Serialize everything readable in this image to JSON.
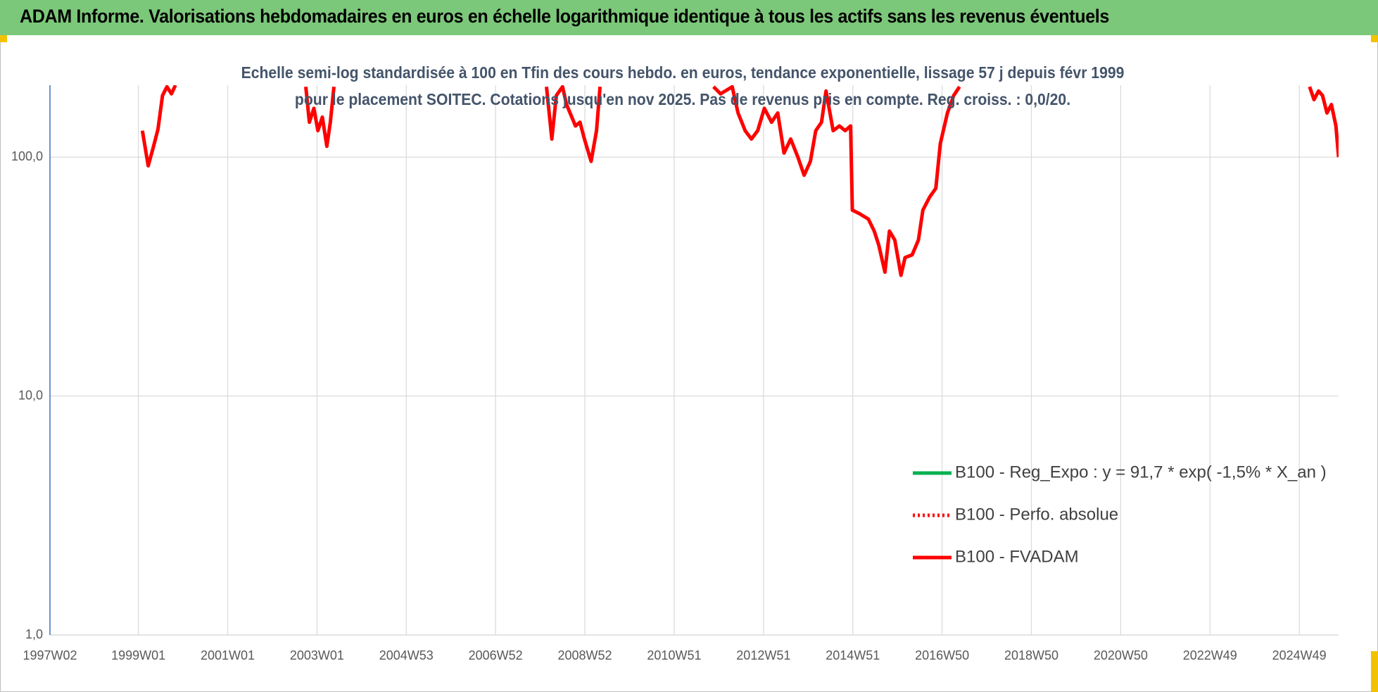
{
  "chart_data": {
    "type": "line",
    "title": "ADAM Informe. Valorisations hebdomadaires en euros en échelle logarithmique identique à tous les actifs sans les revenus éventuels",
    "subtitle": "Echelle semi-log standardisée à 100 en Tfin des cours hebdo. en euros, tendance exponentielle, lissage 57 j depuis févr 1999 pour le placement SOITEC. Cotations jusqu'en nov 2025. Pas de revenus pris en compte. Reg. croiss. : 0,0/20.",
    "log_scale": true,
    "grid": true,
    "legend_position": "right",
    "xlim": [
      1997.02,
      2025.88
    ],
    "xticks": [
      {
        "value": 1997.02,
        "label": "1997W02"
      },
      {
        "value": 1999.0,
        "label": "1999W01"
      },
      {
        "value": 2001.0,
        "label": "2001W01"
      },
      {
        "value": 2003.0,
        "label": "2003W01"
      },
      {
        "value": 2005.0,
        "label": "2004W53"
      },
      {
        "value": 2007.0,
        "label": "2006W52"
      },
      {
        "value": 2009.0,
        "label": "2008W52"
      },
      {
        "value": 2011.0,
        "label": "2010W51"
      },
      {
        "value": 2013.0,
        "label": "2012W51"
      },
      {
        "value": 2015.0,
        "label": "2014W51"
      },
      {
        "value": 2017.0,
        "label": "2016W50"
      },
      {
        "value": 2019.0,
        "label": "2018W50"
      },
      {
        "value": 2021.0,
        "label": "2020W50"
      },
      {
        "value": 2023.0,
        "label": "2022W49"
      },
      {
        "value": 2025.0,
        "label": "2024W49"
      }
    ],
    "ylim": [
      1,
      200
    ],
    "yticks": [
      {
        "value": 1,
        "label": "1,0"
      },
      {
        "value": 10,
        "label": "10,0"
      },
      {
        "value": 100,
        "label": "100,0"
      }
    ],
    "series": [
      {
        "name": "B100 - Reg_Expo : y = 91,7 * exp( -1,5% *  X_an )",
        "color": "#00b050",
        "style": "solid",
        "x": [],
        "values": []
      },
      {
        "name": "B100 - Perfo. absolue",
        "color": "#ff0000",
        "style": "dotted",
        "x": [],
        "values": []
      },
      {
        "name": "B100 - FVADAM",
        "color": "#ff0000",
        "style": "solid",
        "x": [
          1999.09,
          1999.22,
          1999.34,
          1999.44,
          1999.54,
          1999.64,
          1999.74,
          1999.83,
          null,
          2002.75,
          2002.83,
          2002.93,
          2003.02,
          2003.12,
          2003.22,
          2003.3,
          2003.38,
          null,
          2008.14,
          2008.26,
          2008.36,
          2008.5,
          2008.59,
          2008.79,
          2008.89,
          2008.99,
          2009.14,
          2009.26,
          2009.34,
          null,
          2011.88,
          2012.04,
          2012.3,
          2012.43,
          2012.59,
          2012.73,
          2012.87,
          2013.02,
          2013.18,
          2013.32,
          2013.46,
          2013.61,
          2013.77,
          2013.91,
          2014.05,
          2014.17,
          2014.3,
          2014.4,
          2014.56,
          2014.7,
          2014.83,
          2014.95,
          2014.99,
          2015.15,
          2015.35,
          2015.48,
          2015.58,
          2015.72,
          2015.82,
          2015.94,
          2016.08,
          2016.17,
          2016.33,
          2016.47,
          2016.57,
          2016.72,
          2016.86,
          2016.96,
          2017.12,
          2017.26,
          2017.39,
          null,
          2025.23,
          2025.33,
          2025.43,
          2025.52,
          2025.62,
          2025.72,
          2025.82,
          2025.88
        ],
        "values": [
          129,
          92,
          111,
          131,
          181,
          197,
          184,
          200,
          null,
          197,
          140,
          160,
          129,
          147,
          111,
          140,
          197,
          null,
          197,
          119,
          181,
          197,
          166,
          135,
          140,
          119,
          96,
          129,
          197,
          null,
          197,
          184,
          197,
          153,
          129,
          119,
          129,
          160,
          140,
          153,
          104,
          119,
          100,
          84,
          96,
          129,
          140,
          189,
          129,
          135,
          129,
          135,
          60,
          58,
          55,
          49,
          43,
          33,
          49,
          45,
          32,
          38,
          39,
          45,
          60,
          68,
          74,
          114,
          153,
          181,
          197,
          null,
          197,
          174,
          189,
          181,
          153,
          166,
          135,
          100
        ]
      }
    ]
  }
}
